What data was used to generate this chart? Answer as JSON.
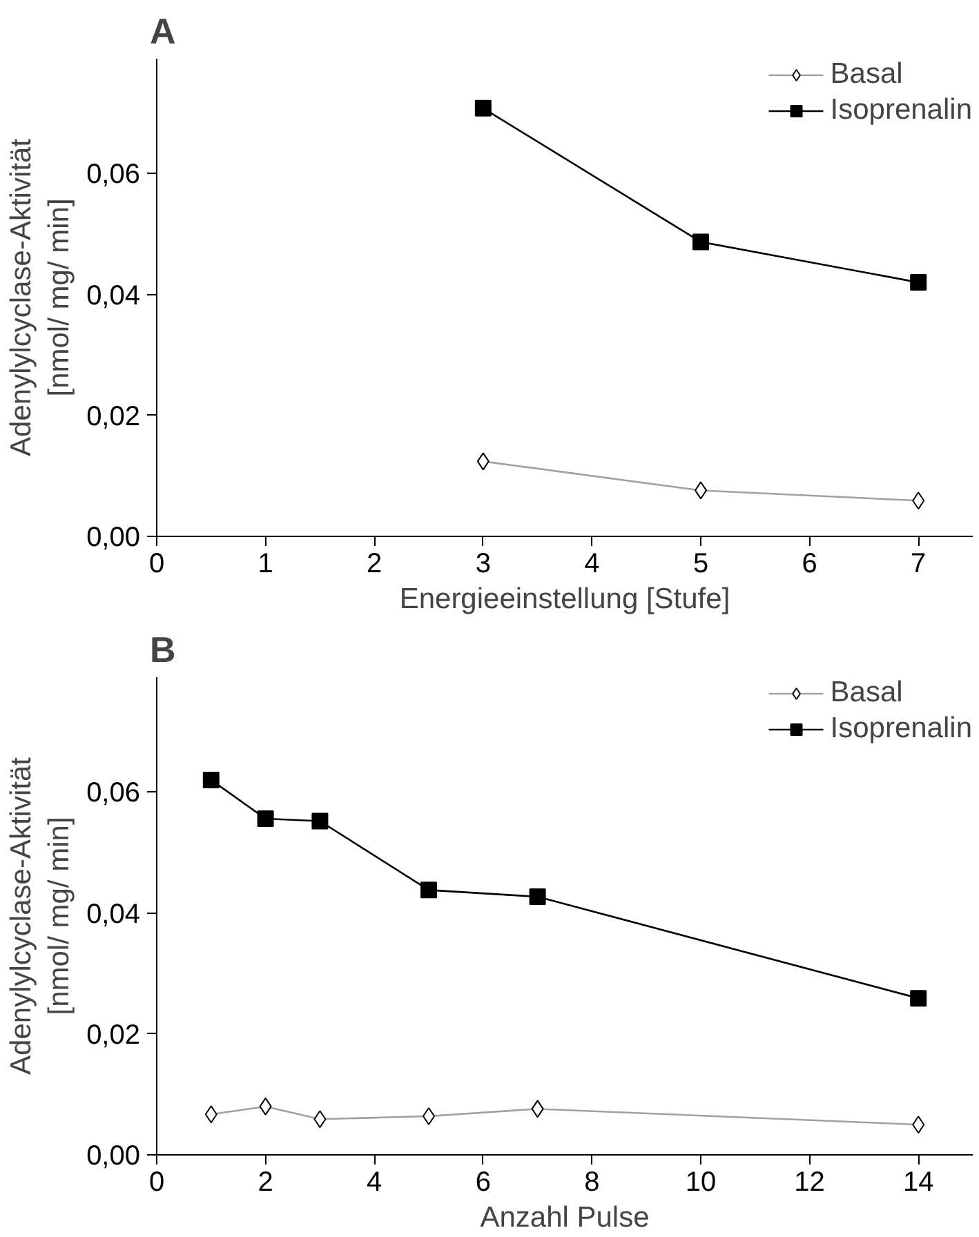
{
  "chart_data": [
    {
      "type": "line",
      "title": "A",
      "xlabel": "Energieeinstellung [Stufe]",
      "ylabel": "Adenylylcyclase-Aktivität\n[nmol/ mg/ min]",
      "x": [
        3,
        5,
        7
      ],
      "series": [
        {
          "name": "Basal",
          "color": "#a0a0a0",
          "marker": "diamond",
          "values": [
            0.0124,
            0.0076,
            0.0059
          ]
        },
        {
          "name": "Isoprenalin",
          "color": "#000000",
          "marker": "square",
          "values": [
            0.0708,
            0.0487,
            0.042
          ]
        }
      ],
      "xlim": [
        0,
        7.5
      ],
      "xticks": [
        0,
        1,
        2,
        3,
        4,
        5,
        6,
        7
      ],
      "ylim": [
        0,
        0.079
      ],
      "yticks": [
        {
          "value": 0,
          "label": "0,00"
        },
        {
          "value": 0.02,
          "label": "0,02"
        },
        {
          "value": 0.04,
          "label": "0,04"
        },
        {
          "value": 0.06,
          "label": "0,06"
        }
      ],
      "grid": false,
      "legend": "top right",
      "line_style": "solid"
    },
    {
      "type": "line",
      "title": "B",
      "xlabel": "Anzahl Pulse",
      "ylabel": "Adenylylcyclase-Aktivität\n[nmol/ mg/ min]",
      "x": [
        1,
        2,
        3,
        5,
        7,
        14
      ],
      "series": [
        {
          "name": "Basal",
          "color": "#a0a0a0",
          "marker": "diamond",
          "values": [
            0.0067,
            0.008,
            0.0059,
            0.0064,
            0.0076,
            0.005
          ]
        },
        {
          "name": "Isoprenalin",
          "color": "#000000",
          "marker": "square",
          "values": [
            0.062,
            0.0556,
            0.0552,
            0.0438,
            0.0427,
            0.0259
          ]
        }
      ],
      "xlim": [
        0,
        15
      ],
      "xticks": [
        0,
        2,
        4,
        6,
        8,
        10,
        12,
        14
      ],
      "ylim": [
        0,
        0.079
      ],
      "yticks": [
        {
          "value": 0,
          "label": "0,00"
        },
        {
          "value": 0.02,
          "label": "0,02"
        },
        {
          "value": 0.04,
          "label": "0,04"
        },
        {
          "value": 0.06,
          "label": "0,06"
        }
      ],
      "grid": false,
      "legend": "top right",
      "line_style": "solid"
    }
  ]
}
